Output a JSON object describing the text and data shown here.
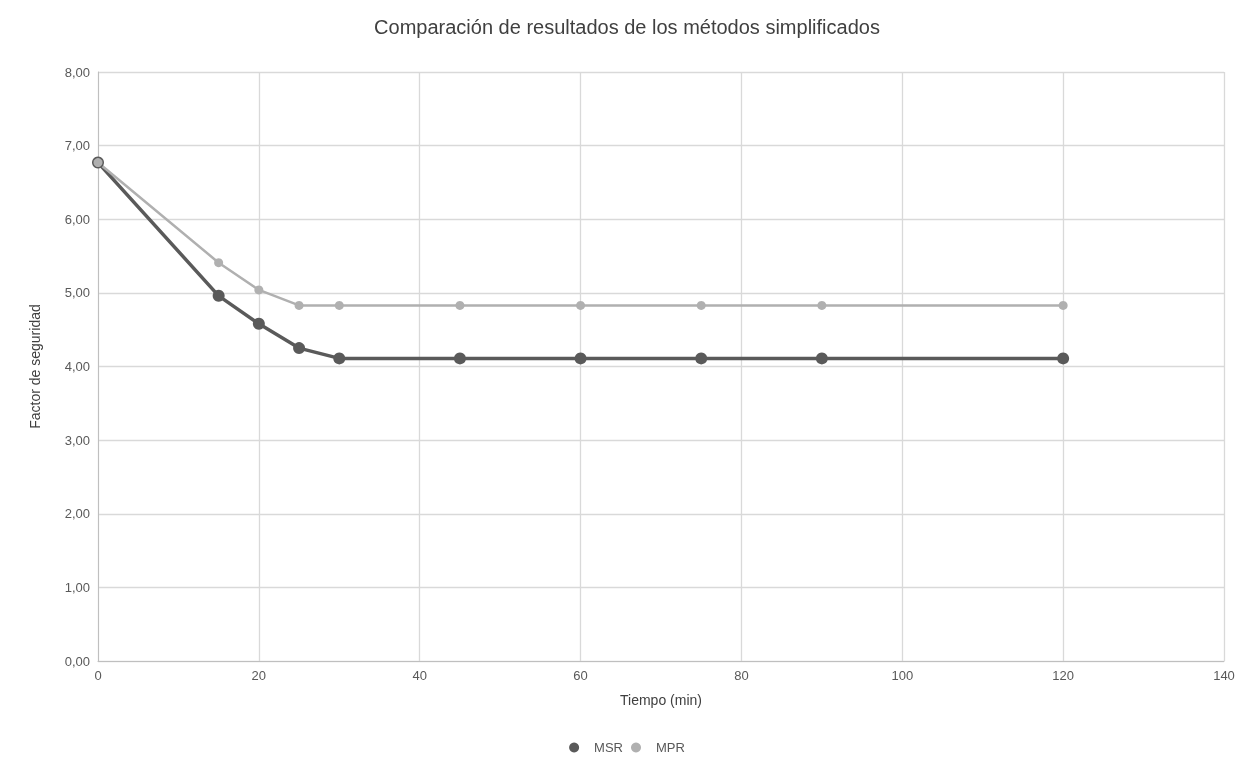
{
  "chart_data": {
    "type": "line",
    "title": "Comparación de resultados de los métodos simplificados",
    "xlabel": "Tiempo (min)",
    "ylabel": "Factor de seguridad",
    "x": [
      0,
      15,
      20,
      25,
      30,
      45,
      60,
      75,
      90,
      120
    ],
    "series": [
      {
        "name": "MSR",
        "color": "#5a5a5a",
        "values": [
          6.77,
          4.96,
          4.58,
          4.25,
          4.11,
          4.11,
          4.11,
          4.11,
          4.11,
          4.11
        ]
      },
      {
        "name": "MPR",
        "color": "#b0b0b0",
        "values": [
          6.77,
          5.41,
          5.04,
          4.83,
          4.83,
          4.83,
          4.83,
          4.83,
          4.83,
          4.83
        ]
      }
    ],
    "xlim": [
      0,
      140
    ],
    "xticks": [
      0,
      20,
      40,
      60,
      80,
      100,
      120,
      140
    ],
    "ylim": [
      0,
      8
    ],
    "yticks": [
      {
        "value": 0,
        "label": "0,00"
      },
      {
        "value": 1,
        "label": "1,00"
      },
      {
        "value": 2,
        "label": "2,00"
      },
      {
        "value": 3,
        "label": "3,00"
      },
      {
        "value": 4,
        "label": "4,00"
      },
      {
        "value": 5,
        "label": "5,00"
      },
      {
        "value": 6,
        "label": "6,00"
      },
      {
        "value": 7,
        "label": "7,00"
      },
      {
        "value": 8,
        "label": "8,00"
      }
    ],
    "grid": true,
    "legend": "bottom",
    "marker": "circle",
    "line_style": "solid"
  }
}
